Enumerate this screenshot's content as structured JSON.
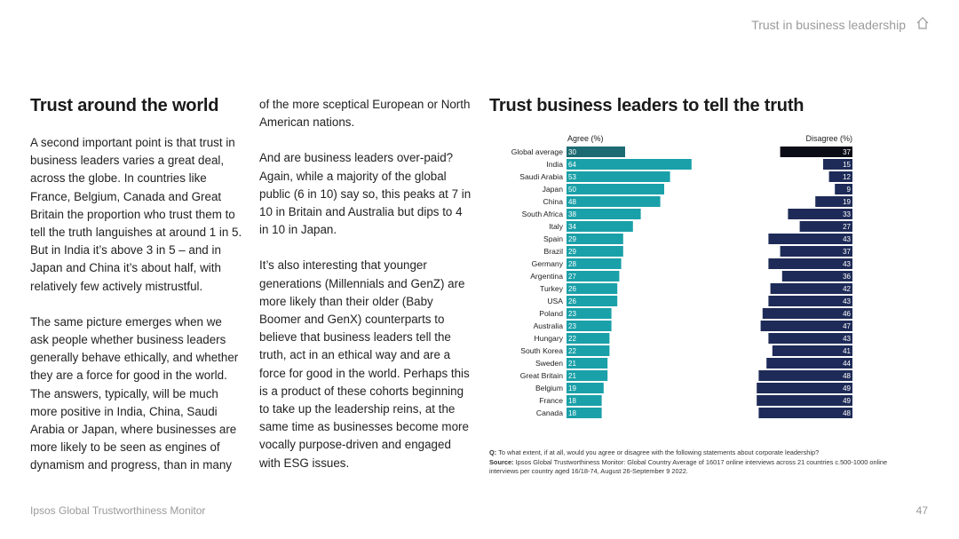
{
  "header": {
    "title": "Trust in business leadership",
    "home_icon": "home-icon"
  },
  "left_column": {
    "heading": "Trust around the world",
    "paragraphs": [
      "A second important point is that trust in business leaders varies a great deal, across the globe. In countries like France, Belgium, Canada and Great Britain the proportion who trust them to tell the truth languishes at around 1 in 5. But in India it’s above 3 in 5 – and in Japan and China it’s about half, with relatively few actively mistrustful.",
      "The same picture emerges when we ask people whether business leaders generally behave ethically, and whether they are a force for good in the world. The answers, typically, will be much more positive in India, China, Saudi Arabia or Japan, where businesses are more likely to be seen as engines of dynamism and progress, than in many"
    ]
  },
  "middle_column": {
    "paragraphs": [
      "of the more sceptical European or North American nations.",
      "And are business leaders over-paid? Again, while a majority of the global public (6 in 10) say so, this peaks at 7 in 10 in Britain and Australia but dips to 4 in 10 in Japan.",
      "It’s also interesting that younger generations (Millennials and GenZ) are more likely than their older (Baby Boomer and GenX) counterparts to believe that business leaders tell the truth, act in an ethical way and are a force for good in the world. Perhaps this is a product of these cohorts beginning to take up the leadership reins, at the same time as businesses become more vocally purpose-driven and engaged with ESG issues."
    ]
  },
  "chart_data": {
    "type": "bar",
    "title": "Trust business leaders to tell the truth",
    "agree_label": "Agree (%)",
    "disagree_label": "Disagree (%)",
    "categories": [
      "Global average",
      "India",
      "Saudi Arabia",
      "Japan",
      "China",
      "South Africa",
      "Italy",
      "Spain",
      "Brazil",
      "Germany",
      "Argentina",
      "Turkey",
      "USA",
      "Poland",
      "Australia",
      "Hungary",
      "South Korea",
      "Sweden",
      "Great Britain",
      "Belgium",
      "France",
      "Canada"
    ],
    "series": [
      {
        "name": "Agree (%)",
        "values": [
          30,
          64,
          53,
          50,
          48,
          38,
          34,
          29,
          29,
          28,
          27,
          26,
          26,
          23,
          23,
          22,
          22,
          21,
          21,
          19,
          18,
          18
        ]
      },
      {
        "name": "Disagree (%)",
        "values": [
          37,
          15,
          12,
          9,
          19,
          33,
          27,
          43,
          37,
          43,
          36,
          42,
          43,
          46,
          47,
          43,
          41,
          44,
          48,
          49,
          49,
          48
        ]
      }
    ],
    "xlim": [
      0,
      100
    ],
    "colors": {
      "agree": "#1aa0a8",
      "agree_highlight": "#1c6b72",
      "disagree": "#1e2b58",
      "disagree_highlight": "#0c0c16"
    }
  },
  "footnote": {
    "q_label": "Q:",
    "q_text": "To what extent, if at all, would you agree or disagree with the following statements about corporate leadership?",
    "source_label": "Source:",
    "source_text": "Ipsos Global Trustworthiness Monitor: Global Country Average of 16017 online interviews across 21 countries c.500-1000 online interviews per country aged 16/18-74, August 26-September 9 2022."
  },
  "footer": {
    "left": "Ipsos Global Trustworthiness Monitor",
    "page_number": "47"
  }
}
